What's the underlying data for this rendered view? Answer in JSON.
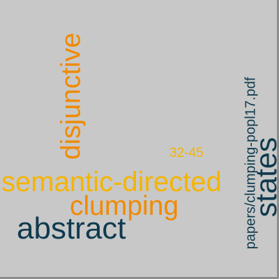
{
  "cloud": {
    "words": [
      {
        "text": "semantic-directed",
        "color": "#f5b400"
      },
      {
        "text": "clumping",
        "color": "#f08a00"
      },
      {
        "text": "abstract",
        "color": "#0f3a4e"
      },
      {
        "text": "disjunctive",
        "color": "#f08a00"
      },
      {
        "text": "states",
        "color": "#0f3a4e"
      },
      {
        "text": "papers/clumping-popl17.pdf",
        "color": "#0f3a4e"
      },
      {
        "text": "32-45",
        "color": "#f5b400"
      }
    ]
  }
}
